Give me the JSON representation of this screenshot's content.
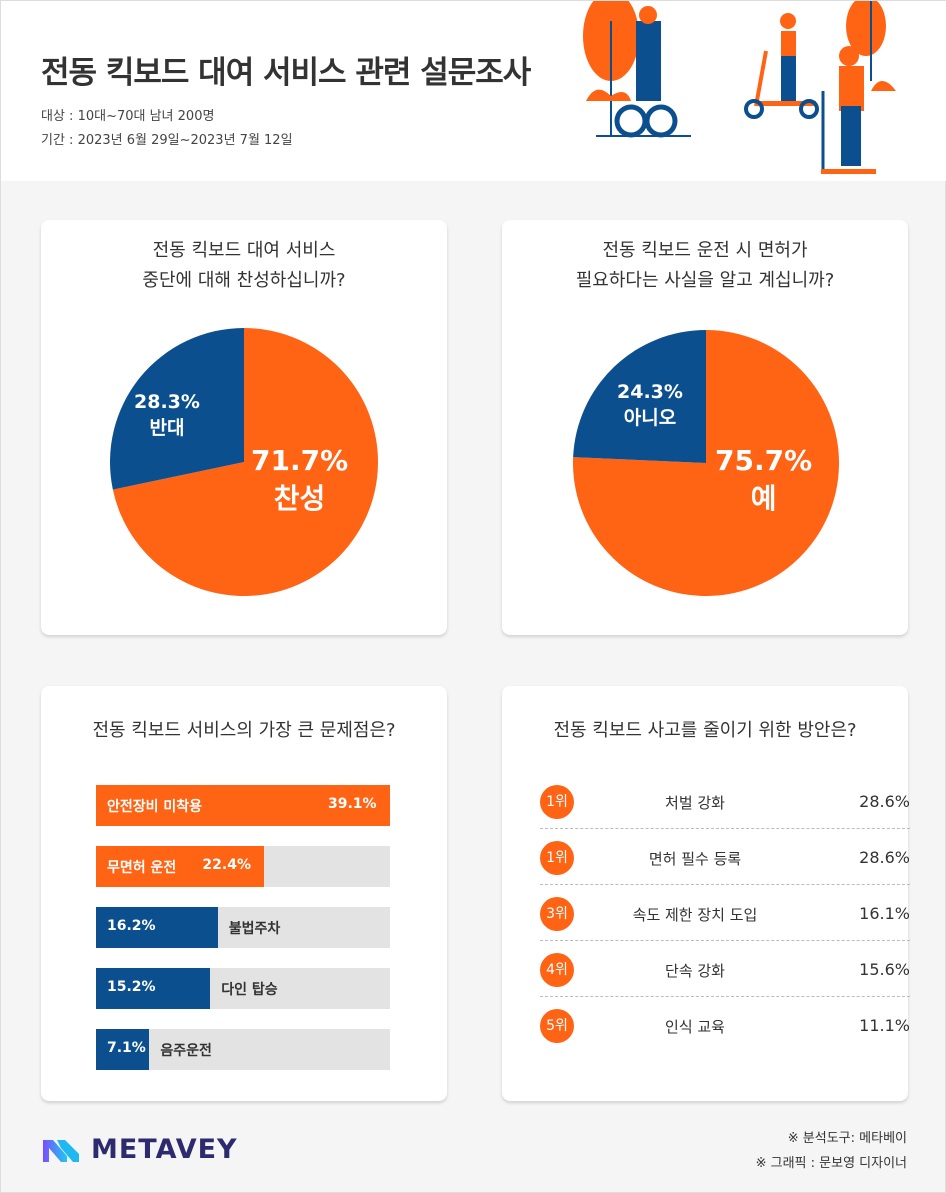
{
  "header": {
    "title": "전동 킥보드 대여 서비스 관련 설문조사",
    "target": "대상 : 10대~70대 남녀 200명",
    "period": "기간 : 2023년 6월 29일~2023년 7월 12일"
  },
  "colors": {
    "orange": "#ff6314",
    "blue": "#0b4f8f"
  },
  "chart_data": [
    {
      "type": "pie",
      "title": "전동 킥보드 대여 서비스\n중단에 대해 찬성하십니까?",
      "title_lines": [
        "전동 킥보드 대여 서비스",
        "중단에 대해 찬성하십니까?"
      ],
      "slices": [
        {
          "label": "찬성",
          "value": 71.7,
          "text": "71.7%"
        },
        {
          "label": "반대",
          "value": 28.3,
          "text": "28.3%"
        }
      ]
    },
    {
      "type": "pie",
      "title": "전동 킥보드 운전 시 면허가\n필요하다는 사실을 알고 계십니까?",
      "title_lines": [
        "전동 킥보드 운전 시 면허가",
        "필요하다는 사실을 알고 계십니까?"
      ],
      "slices": [
        {
          "label": "예",
          "value": 75.7,
          "text": "75.7%"
        },
        {
          "label": "아니오",
          "value": 24.3,
          "text": "24.3%"
        }
      ]
    },
    {
      "type": "bar",
      "title": "전동 킥보드 서비스의 가장 큰 문제점은?",
      "categories": [
        "안전장비 미착용",
        "무면허 운전",
        "불법주차",
        "다인 탑승",
        "음주운전"
      ],
      "values": [
        39.1,
        22.4,
        16.2,
        15.2,
        7.1
      ],
      "texts": [
        "39.1%",
        "22.4%",
        "16.2%",
        "15.2%",
        "7.1%"
      ]
    },
    {
      "type": "table",
      "title": "전동 킥보드 사고를 줄이기 위한 방안은?",
      "rows": [
        {
          "rank": "1위",
          "item": "처벌 강화",
          "value": "28.6%"
        },
        {
          "rank": "1위",
          "item": "면허 필수 등록",
          "value": "28.6%"
        },
        {
          "rank": "3위",
          "item": "속도 제한 장치 도입",
          "value": "16.1%"
        },
        {
          "rank": "4위",
          "item": "단속 강화",
          "value": "15.6%"
        },
        {
          "rank": "5위",
          "item": "인식 교육",
          "value": "11.1%"
        }
      ]
    }
  ],
  "footer": {
    "logo": "METAVEY",
    "tool": "※ 분석도구: 메타베이",
    "graphic": "※ 그래픽 : 문보영 디자이너"
  }
}
